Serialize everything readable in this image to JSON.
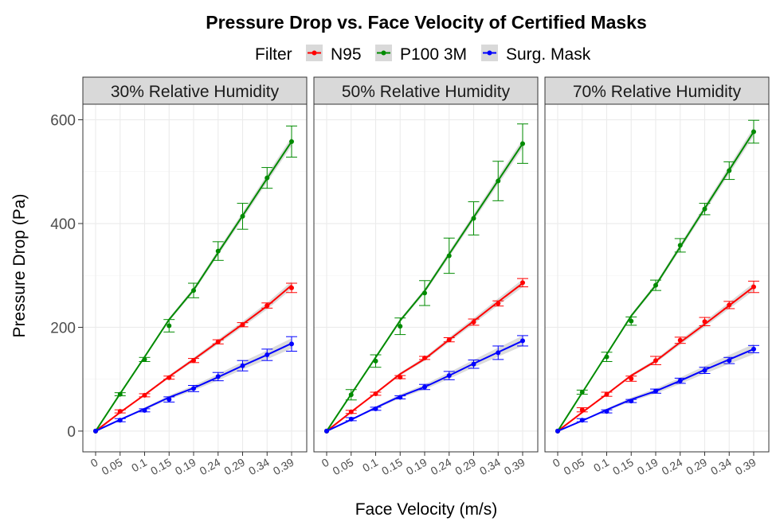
{
  "chart_data": {
    "type": "line",
    "title": "Pressure Drop vs. Face Velocity of Certified Masks",
    "xlabel": "Face Velocity (m/s)",
    "ylabel": "Pressure Drop (Pa)",
    "legend_title": "Filter",
    "legend_position": "top",
    "ylim": [
      -40,
      630
    ],
    "yticks": [
      "0",
      "200",
      "400",
      "600"
    ],
    "categories": [
      "0",
      "0.05",
      "0.1",
      "0.15",
      "0.19",
      "0.24",
      "0.29",
      "0.34",
      "0.39"
    ],
    "series_colors": [
      "#ff0000",
      "#008b00",
      "#0000ff"
    ],
    "panels": [
      {
        "label": "30% Relative Humidity",
        "series": [
          {
            "name": "N95",
            "values": [
              0,
              38,
              69,
              103,
              136,
              172,
              205,
              242,
              276
            ],
            "errors": [
              0,
              3,
              3,
              3,
              4,
              4,
              4,
              5,
              9
            ],
            "fit": [
              0,
              36,
              70,
              105,
              138,
              172,
              206,
              241,
              281
            ]
          },
          {
            "name": "P100 3M",
            "values": [
              0,
              71,
              138,
              203,
              271,
              347,
              414,
              488,
              558
            ],
            "errors": [
              0,
              3,
              4,
              12,
              14,
              18,
              25,
              20,
              30
            ],
            "fit": [
              0,
              72,
              143,
              215,
              272,
              344,
              415,
              487,
              558
            ]
          },
          {
            "name": "Surg. Mask",
            "values": [
              0,
              21,
              40,
              61,
              82,
              105,
              126,
              147,
              168
            ],
            "errors": [
              0,
              3,
              3,
              5,
              6,
              8,
              10,
              11,
              14
            ],
            "fit": [
              0,
              22,
              43,
              65,
              83,
              104,
              126,
              147,
              169
            ]
          }
        ]
      },
      {
        "label": "50% Relative Humidity",
        "series": [
          {
            "name": "N95",
            "values": [
              0,
              37,
              72,
              104,
              141,
              176,
              210,
              246,
              286
            ],
            "errors": [
              0,
              3,
              3,
              3,
              3,
              4,
              6,
              5,
              8
            ],
            "fit": [
              0,
              37,
              73,
              110,
              139,
              176,
              212,
              249,
              285
            ]
          },
          {
            "name": "P100 3M",
            "values": [
              0,
              70,
              135,
              202,
              266,
              338,
              410,
              482,
              554
            ],
            "errors": [
              0,
              10,
              12,
              16,
              24,
              34,
              32,
              38,
              38
            ],
            "fit": [
              0,
              71,
              142,
              213,
              270,
              341,
              412,
              483,
              554
            ]
          },
          {
            "name": "Surg. Mask",
            "values": [
              0,
              23,
              43,
              65,
              85,
              107,
              129,
              151,
              174
            ],
            "errors": [
              0,
              3,
              3,
              3,
              5,
              8,
              8,
              13,
              10
            ],
            "fit": [
              0,
              22,
              45,
              67,
              85,
              107,
              130,
              152,
              174
            ]
          }
        ]
      },
      {
        "label": "70% Relative Humidity",
        "series": [
          {
            "name": "N95",
            "values": [
              0,
              41,
              71,
              101,
              136,
              175,
              211,
              243,
              278
            ],
            "errors": [
              0,
              4,
              4,
              5,
              8,
              6,
              8,
              7,
              11
            ],
            "fit": [
              0,
              36,
              71,
              107,
              135,
              171,
              206,
              242,
              278
            ]
          },
          {
            "name": "P100 3M",
            "values": [
              0,
              75,
              143,
              212,
              281,
              358,
              428,
              502,
              577
            ],
            "errors": [
              0,
              4,
              9,
              8,
              10,
              13,
              11,
              17,
              22
            ],
            "fit": [
              0,
              74,
              148,
              222,
              281,
              355,
              429,
              503,
              577
            ]
          },
          {
            "name": "Surg. Mask",
            "values": [
              0,
              21,
              38,
              58,
              77,
              97,
              117,
              136,
              158
            ],
            "errors": [
              0,
              3,
              3,
              3,
              4,
              5,
              6,
              6,
              7
            ],
            "fit": [
              0,
              20,
              41,
              61,
              77,
              97,
              118,
              138,
              158
            ]
          }
        ]
      }
    ]
  }
}
